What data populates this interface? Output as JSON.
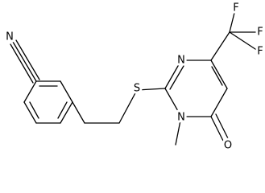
{
  "atoms": [
    {
      "label": "N"
    },
    {
      "label": "S"
    },
    {
      "label": "N"
    },
    {
      "label": "N"
    },
    {
      "label": "O"
    },
    {
      "label": "F"
    },
    {
      "label": "F"
    },
    {
      "label": "F"
    }
  ]
}
